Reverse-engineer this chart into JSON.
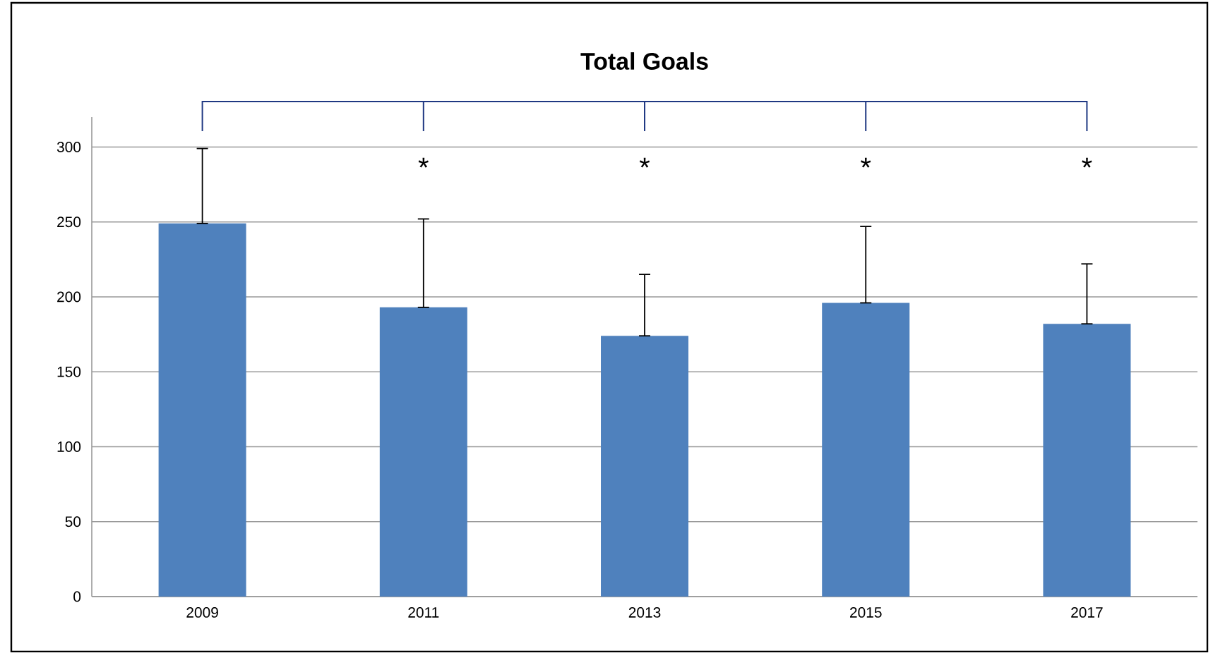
{
  "chart_data": {
    "type": "bar",
    "title": "Total Goals",
    "categories": [
      "2009",
      "2011",
      "2013",
      "2015",
      "2017"
    ],
    "values": [
      249,
      193,
      174,
      196,
      182
    ],
    "errors": [
      [
        249,
        299
      ],
      [
        193,
        252
      ],
      [
        174,
        215
      ],
      [
        196,
        247
      ],
      [
        182,
        222
      ]
    ],
    "color": "#4f81bd",
    "ylim": [
      0,
      320
    ],
    "yticks": [
      0,
      50,
      100,
      150,
      200,
      250,
      300
    ],
    "grid": "y",
    "annotations": [
      "*",
      "*",
      "*",
      "*"
    ]
  }
}
